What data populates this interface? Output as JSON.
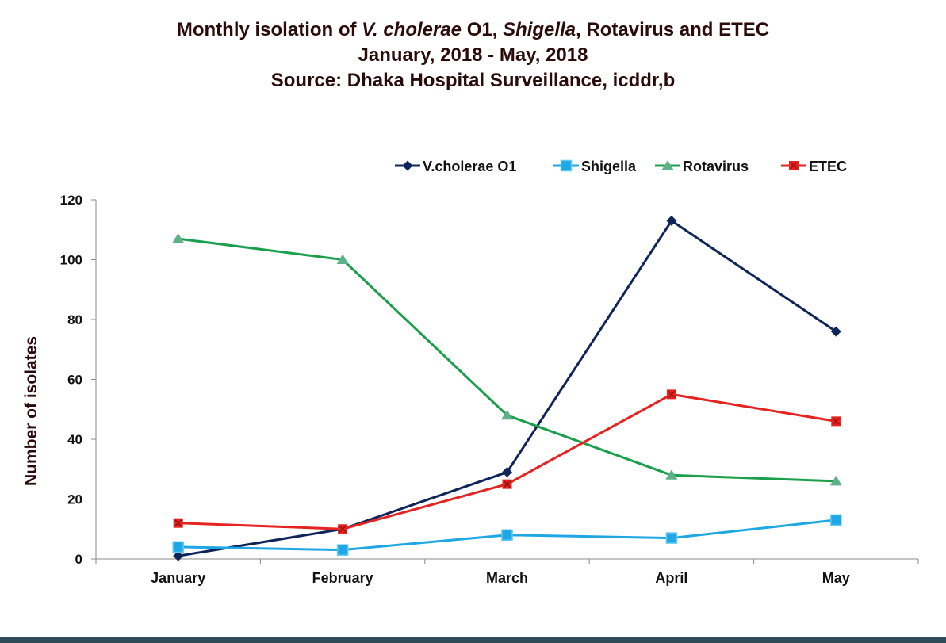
{
  "title": {
    "line1": {
      "p1": "Monthly isolation of ",
      "p2": "V. cholerae",
      "p3": " O1, ",
      "p4": "Shigella",
      "p5": ", Rotavirus and ETEC"
    },
    "line2": "January, 2018 - May, 2018",
    "line3": "Source: Dhaka Hospital Surveillance, icddr,b"
  },
  "chart_data": {
    "type": "line",
    "title": "Monthly isolation of V. cholerae O1, Shigella, Rotavirus and ETEC",
    "subtitle": "January, 2018 - May, 2018 / Source: Dhaka Hospital Surveillance, icddr,b",
    "xlabel": "",
    "ylabel": "Number of isolates",
    "categories": [
      "January",
      "February",
      "March",
      "April",
      "May"
    ],
    "ylim": [
      0,
      120
    ],
    "yticks": [
      0,
      20,
      40,
      60,
      80,
      100,
      120
    ],
    "grid": false,
    "legend_position": "top-right",
    "series": [
      {
        "name": "V.cholerae O1",
        "color": "#0d2559",
        "marker": "diamond",
        "values": [
          1,
          10,
          29,
          113,
          76
        ]
      },
      {
        "name": "Shigella",
        "color": "#1ea7e4",
        "marker": "square",
        "values": [
          4,
          3,
          8,
          7,
          13
        ]
      },
      {
        "name": "Rotavirus",
        "color": "#1aa04a",
        "marker": "triangle",
        "values": [
          107,
          100,
          48,
          28,
          26
        ]
      },
      {
        "name": "ETEC",
        "color": "#e52320",
        "marker": "square-x",
        "values": [
          12,
          10,
          25,
          55,
          46
        ]
      }
    ]
  }
}
